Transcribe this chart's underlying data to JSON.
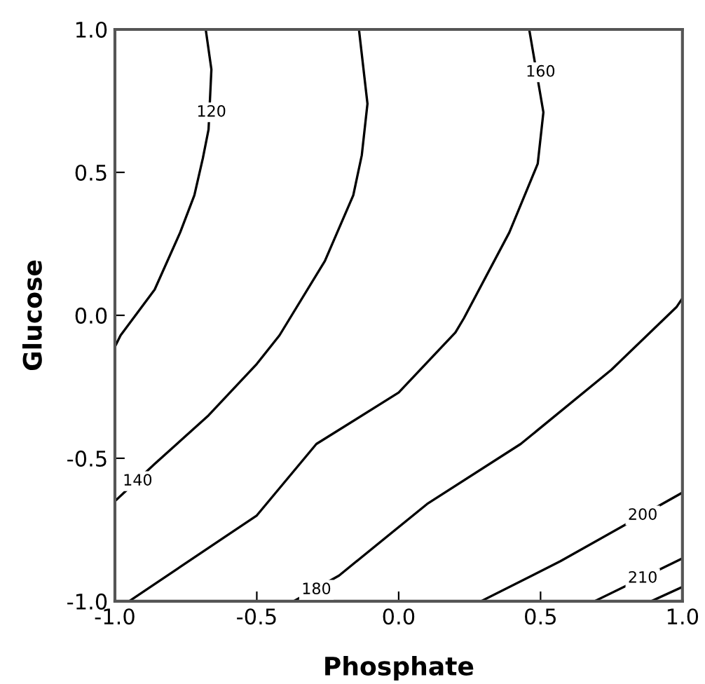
{
  "chart_data": {
    "type": "line",
    "xlabel": "Phosphate",
    "ylabel": "Glucose",
    "xlim": [
      -1,
      1
    ],
    "ylim": [
      -1,
      1
    ],
    "xticks": [
      {
        "value": -1,
        "label": "-1.0"
      },
      {
        "value": -0.5,
        "label": "-0.5"
      },
      {
        "value": 0,
        "label": "0.0"
      },
      {
        "value": 0.5,
        "label": "0.5"
      },
      {
        "value": 1,
        "label": "1.0"
      }
    ],
    "yticks": [
      {
        "value": -1,
        "label": "-1.0"
      },
      {
        "value": -0.5,
        "label": "-0.5"
      },
      {
        "value": 0,
        "label": "0.0"
      },
      {
        "value": 0.5,
        "label": "0.5"
      },
      {
        "value": 1,
        "label": "1.0"
      }
    ],
    "grid": false,
    "marker": "none",
    "line_style": "solid",
    "series": [
      {
        "color": "#000000",
        "x": [
          -0.68,
          -0.66,
          -0.67,
          -0.69,
          -0.72,
          -0.77,
          -0.86,
          -0.98,
          -1.0
        ],
        "values": [
          1.0,
          0.86,
          0.65,
          0.55,
          0.42,
          0.29,
          0.09,
          -0.07,
          -0.11
        ]
      },
      {
        "color": "#000000",
        "x": [
          -0.14,
          -0.11,
          -0.13,
          -0.16,
          -0.26,
          -0.42,
          -0.5,
          -0.67,
          -0.86,
          -1.0
        ],
        "values": [
          1.0,
          0.74,
          0.56,
          0.42,
          0.19,
          -0.07,
          -0.17,
          -0.35,
          -0.52,
          -0.65
        ]
      },
      {
        "color": "#000000",
        "x": [
          0.46,
          0.51,
          0.49,
          0.39,
          0.23,
          0.2,
          0.0,
          -0.29,
          -0.5,
          -0.95
        ],
        "values": [
          1.0,
          0.71,
          0.53,
          0.29,
          -0.01,
          -0.06,
          -0.27,
          -0.45,
          -0.7,
          -1.0
        ]
      },
      {
        "color": "#000000",
        "x": [
          1.0,
          0.98,
          0.75,
          0.43,
          0.1,
          -0.21,
          -0.37
        ],
        "values": [
          0.06,
          0.03,
          -0.19,
          -0.45,
          -0.66,
          -0.91,
          -1.0
        ]
      },
      {
        "color": "#000000",
        "x": [
          1.0,
          0.57,
          0.29
        ],
        "values": [
          -0.62,
          -0.86,
          -1.0
        ]
      },
      {
        "color": "#000000",
        "x": [
          1.0,
          0.69
        ],
        "values": [
          -0.85,
          -1.0
        ]
      },
      {
        "color": "#000000",
        "x": [
          1.0,
          0.89
        ],
        "values": [
          -0.95,
          -1.0
        ]
      }
    ],
    "annotations": [
      {
        "text": "120",
        "x": -0.66,
        "y": 0.71
      },
      {
        "text": "160",
        "x": 0.5,
        "y": 0.85
      },
      {
        "text": "140",
        "x": -0.92,
        "y": -0.58
      },
      {
        "text": "180",
        "x": -0.29,
        "y": -0.96
      },
      {
        "text": "200",
        "x": 0.86,
        "y": -0.7
      },
      {
        "text": "210",
        "x": 0.86,
        "y": -0.92
      }
    ]
  }
}
